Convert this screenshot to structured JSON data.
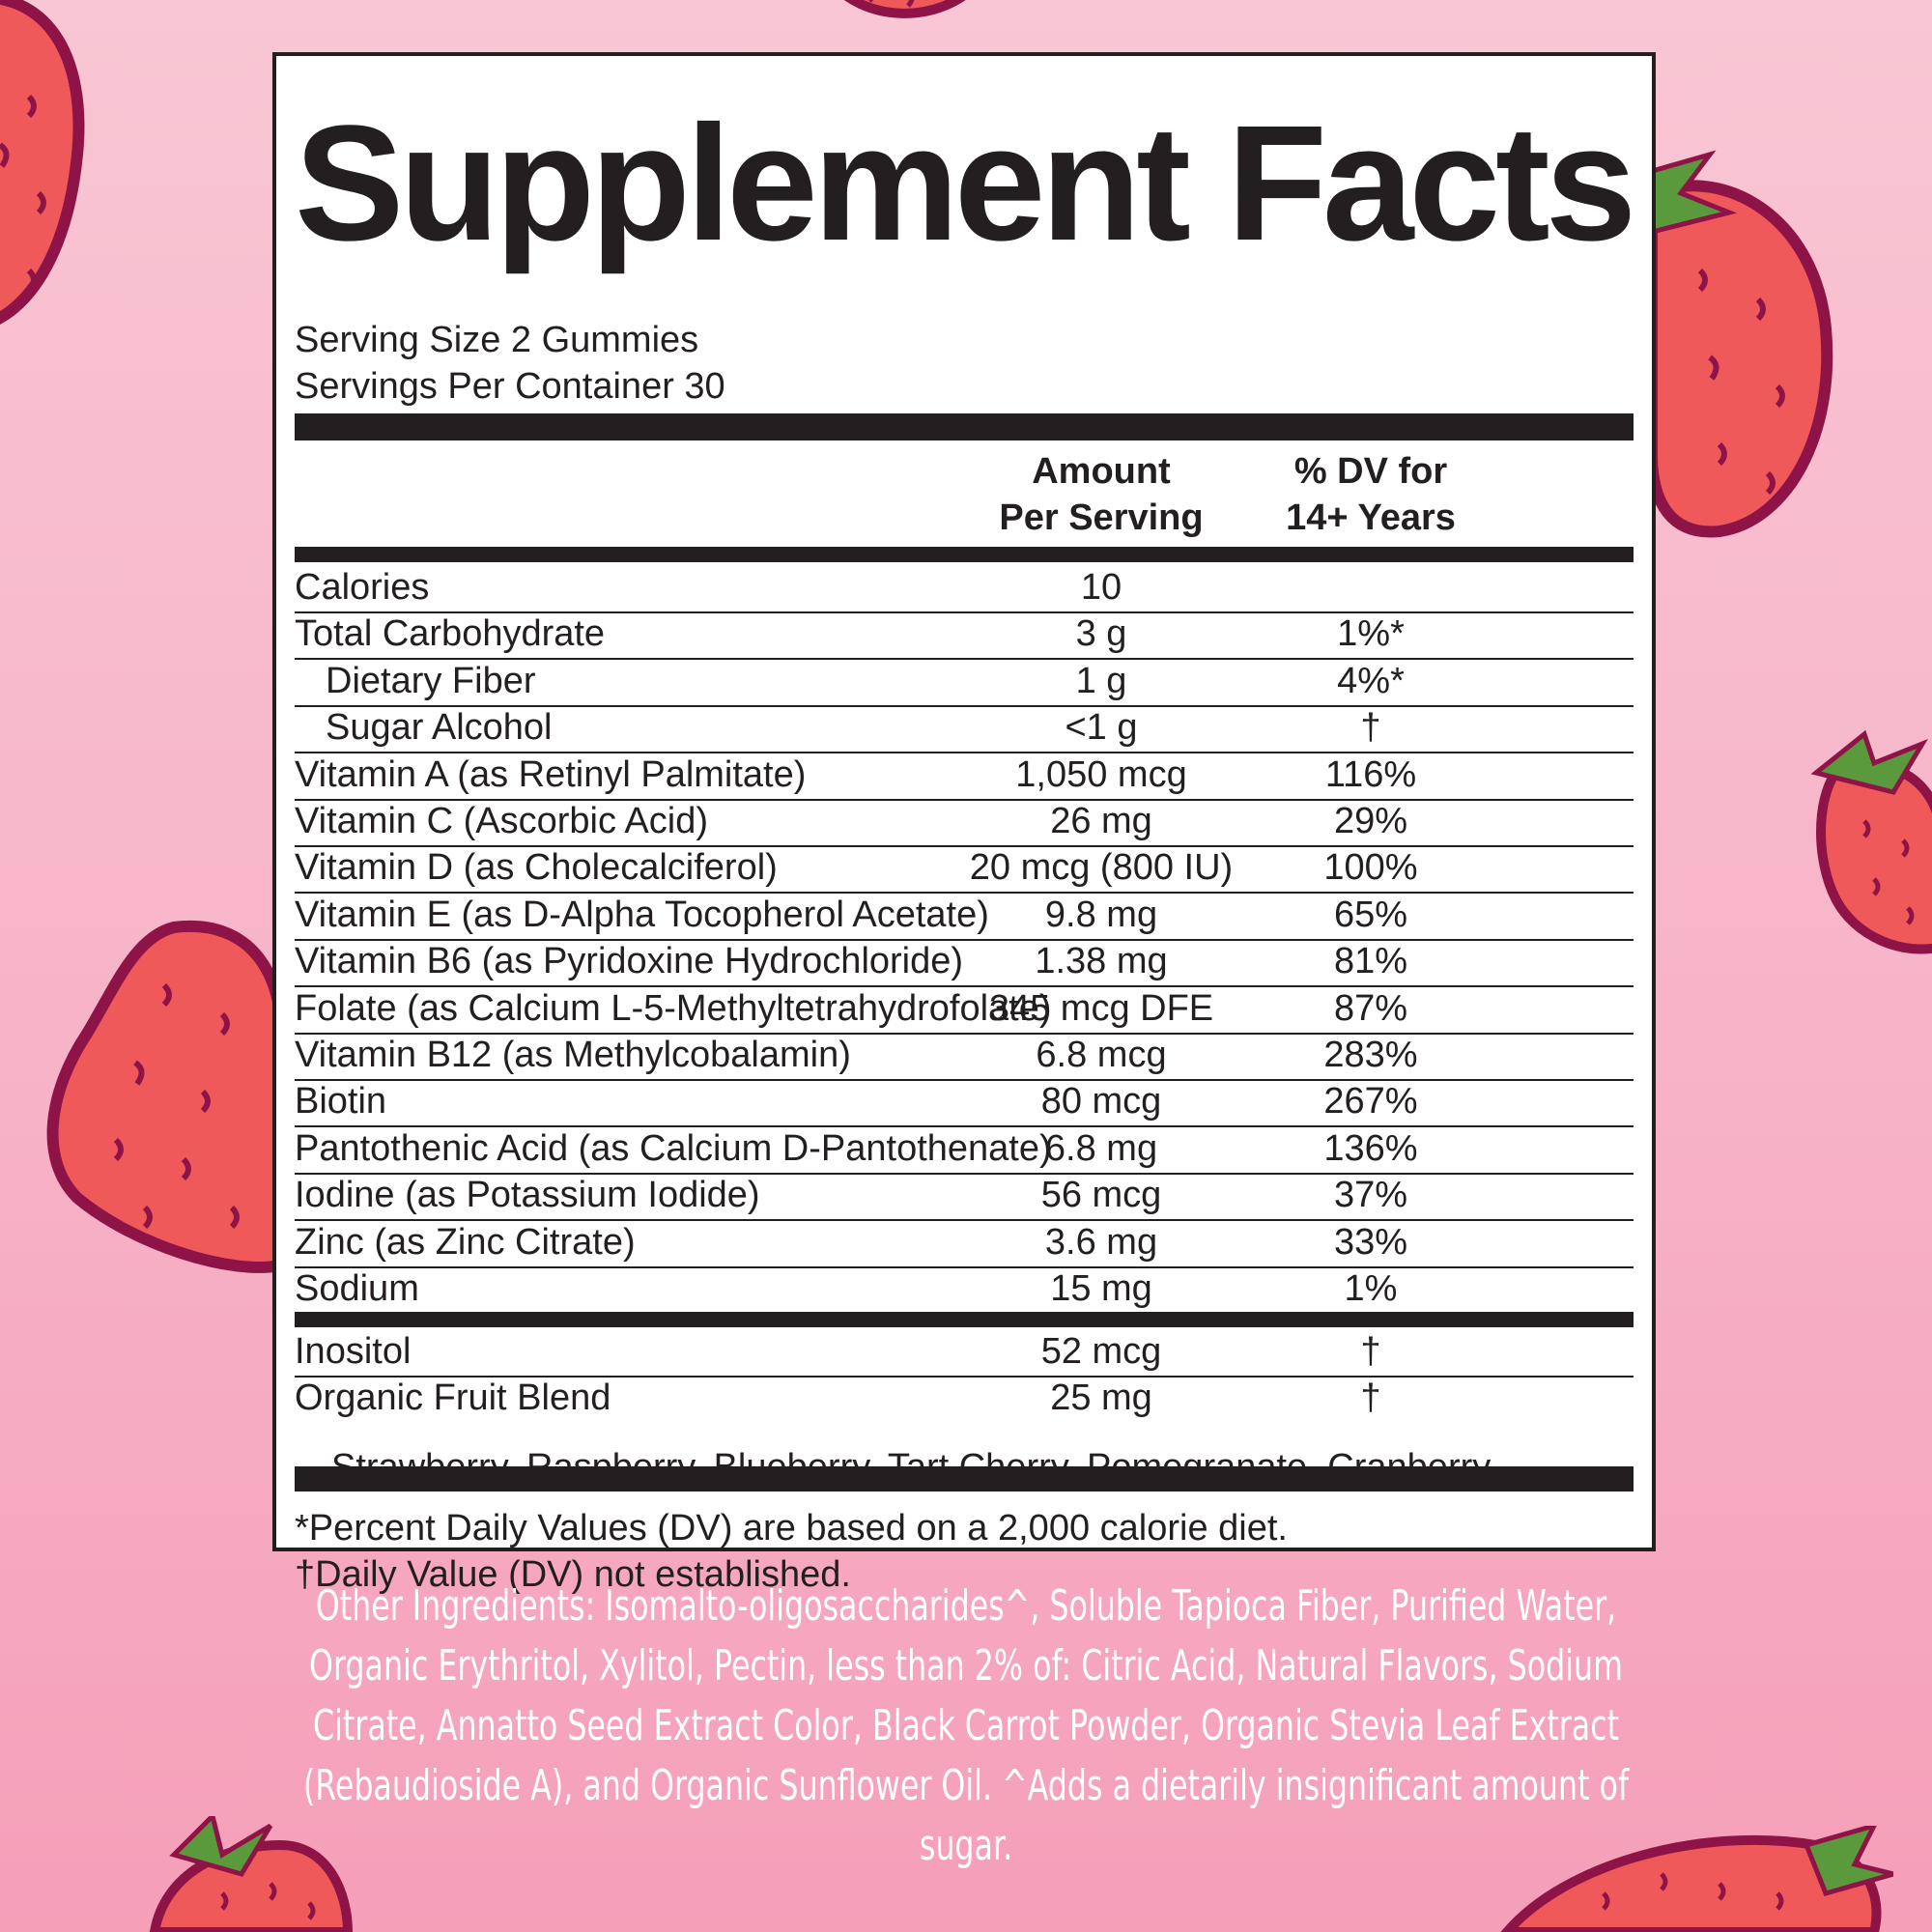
{
  "title": "Supplement Facts",
  "serving_size": "Serving Size 2 Gummies",
  "servings_per_container": "Servings Per Container 30",
  "column_headers": {
    "amount_line1": "Amount",
    "amount_line2": "Per Serving",
    "dv_line1": "% DV for",
    "dv_line2": "14+ Years"
  },
  "nutrients": [
    {
      "name": "Calories",
      "amount": "10",
      "dv": ""
    },
    {
      "name": "Total Carbohydrate",
      "amount": "3 g",
      "dv": "1%*"
    },
    {
      "name": "Dietary Fiber",
      "amount": "1 g",
      "dv": "4%*"
    },
    {
      "name": "Sugar Alcohol",
      "amount": "<1 g",
      "dv": "†"
    },
    {
      "name": "Vitamin A (as Retinyl Palmitate)",
      "amount": "1,050 mcg",
      "dv": "116%"
    },
    {
      "name": "Vitamin C (Ascorbic Acid)",
      "amount": "26 mg",
      "dv": "29%"
    },
    {
      "name": "Vitamin D (as Cholecalciferol)",
      "amount": "20 mcg (800 IU)",
      "dv": "100%"
    },
    {
      "name": "Vitamin E (as D-Alpha Tocopherol Acetate)",
      "amount": "9.8 mg",
      "dv": "65%"
    },
    {
      "name": "Vitamin B6 (as Pyridoxine Hydrochloride)",
      "amount": "1.38 mg",
      "dv": "81%"
    },
    {
      "name": "Folate (as Calcium L-5-Methyltetrahydrofolate)",
      "amount": "345 mcg DFE",
      "dv": "87%"
    },
    {
      "name": "Vitamin B12 (as Methylcobalamin)",
      "amount": "6.8 mcg",
      "dv": "283%"
    },
    {
      "name": "Biotin",
      "amount": "80 mcg",
      "dv": "267%"
    },
    {
      "name": "Pantothenic Acid (as Calcium D-Pantothenate)",
      "amount": "6.8 mg",
      "dv": "136%"
    },
    {
      "name": "Iodine (as Potassium Iodide)",
      "amount": "56 mcg",
      "dv": "37%"
    },
    {
      "name": "Zinc (as Zinc Citrate)",
      "amount": "3.6 mg",
      "dv": "33%"
    },
    {
      "name": "Sodium",
      "amount": "15 mg",
      "dv": "1%"
    }
  ],
  "other_items": [
    {
      "name": "Inositol",
      "amount": "52 mcg",
      "dv": "†"
    },
    {
      "name": "Organic Fruit Blend",
      "amount": "25 mg",
      "dv": "†"
    }
  ],
  "fruit_blend_list": "Strawberry, Raspberry, Blueberry, Tart Cherry, Pomegranate, Cranberry",
  "footnotes": {
    "dv_note": "*Percent Daily Values (DV) are based on a 2,000 calorie diet.",
    "dagger_note": "†Daily Value (DV) not established."
  },
  "other_ingredients": "Other Ingredients: Isomalto-oligosaccharides^, Soluble Tapioca Fiber, Purified Water, Organic Erythritol, Xylitol, Pectin, less than 2% of: Citric Acid, Natural Flavors, Sodium Citrate, Annatto Seed Extract Color, Black Carrot Powder, Organic Stevia Leaf Extract (Rebaudioside A), and Organic Sunflower Oil. ^Adds a dietarily insignificant amount of sugar.",
  "colors": {
    "background_top": "#f8c6d4",
    "background_bottom": "#f59fb9",
    "ink": "#231f20",
    "strawberry": "#f0595a",
    "strawberry_outline": "#8e1448",
    "leaf": "#5a9a3c"
  }
}
